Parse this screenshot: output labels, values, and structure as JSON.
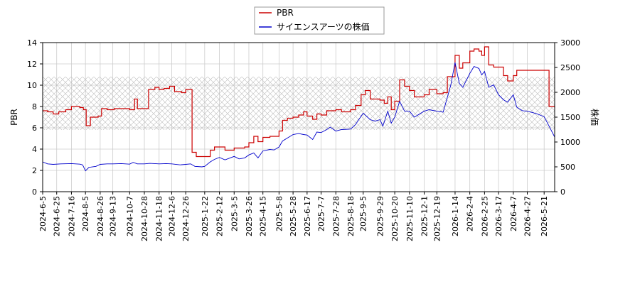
{
  "chart_data": {
    "type": "line",
    "xlabel": "",
    "ylabel_left": "PBR",
    "ylabel_right": "株価",
    "ylim_left": [
      0,
      14
    ],
    "ylim_right": [
      0,
      3000
    ],
    "yticks_left": [
      "0",
      "2",
      "4",
      "6",
      "8",
      "10",
      "12",
      "14"
    ],
    "yticks_right": [
      "0",
      "500",
      "1000",
      "1500",
      "2000",
      "2500",
      "3000"
    ],
    "x_start": "2024-06-05",
    "x_end": "2026-06-05",
    "xticks": [
      "2024-6-5",
      "2024-6-25",
      "2024-7-16",
      "2024-8-5",
      "2024-8-26",
      "2024-9-13",
      "2024-10-7",
      "2024-10-28",
      "2024-11-18",
      "2024-12-6",
      "2024-12-26",
      "2025-1-22",
      "2025-2-12",
      "2025-3-5",
      "2025-3-26",
      "2025-4-15",
      "2025-5-8",
      "2025-5-28",
      "2025-6-17",
      "2025-7-7",
      "2025-7-28",
      "2025-8-18",
      "2025-9-5",
      "2025-9-29",
      "2025-10-20",
      "2025-11-10",
      "2025-12-1",
      "2025-12-19",
      "2026-1-14",
      "2026-2-4",
      "2026-2-25",
      "2026-3-17",
      "2026-4-7",
      "2026-4-27",
      "2026-5-21"
    ],
    "grid": true,
    "legend_position": "top-center",
    "band_left": [
      5.8,
      10.8
    ],
    "series": [
      {
        "name": "PBR",
        "axis": "left",
        "color": "#cc0000",
        "points": [
          [
            "2024-06-05",
            7.6
          ],
          [
            "2024-06-12",
            7.5
          ],
          [
            "2024-06-20",
            7.3
          ],
          [
            "2024-06-28",
            7.5
          ],
          [
            "2024-07-08",
            7.7
          ],
          [
            "2024-07-16",
            8.0
          ],
          [
            "2024-07-28",
            7.9
          ],
          [
            "2024-08-02",
            7.7
          ],
          [
            "2024-08-06",
            6.2
          ],
          [
            "2024-08-12",
            7.0
          ],
          [
            "2024-08-23",
            7.1
          ],
          [
            "2024-08-28",
            7.8
          ],
          [
            "2024-09-05",
            7.7
          ],
          [
            "2024-09-15",
            7.8
          ],
          [
            "2024-09-28",
            7.8
          ],
          [
            "2024-10-07",
            7.7
          ],
          [
            "2024-10-14",
            8.7
          ],
          [
            "2024-10-18",
            7.8
          ],
          [
            "2024-10-28",
            7.8
          ],
          [
            "2024-11-03",
            9.6
          ],
          [
            "2024-11-12",
            9.8
          ],
          [
            "2024-11-18",
            9.6
          ],
          [
            "2024-11-25",
            9.7
          ],
          [
            "2024-12-03",
            9.9
          ],
          [
            "2024-12-10",
            9.4
          ],
          [
            "2024-12-20",
            9.3
          ],
          [
            "2024-12-26",
            9.6
          ],
          [
            "2025-01-02",
            9.6
          ],
          [
            "2025-01-04",
            3.7
          ],
          [
            "2025-01-10",
            3.3
          ],
          [
            "2025-01-22",
            3.3
          ],
          [
            "2025-01-30",
            3.9
          ],
          [
            "2025-02-05",
            4.2
          ],
          [
            "2025-02-20",
            3.9
          ],
          [
            "2025-03-05",
            4.1
          ],
          [
            "2025-03-20",
            4.2
          ],
          [
            "2025-03-26",
            4.6
          ],
          [
            "2025-04-02",
            5.2
          ],
          [
            "2025-04-08",
            4.7
          ],
          [
            "2025-04-15",
            5.1
          ],
          [
            "2025-04-25",
            5.2
          ],
          [
            "2025-05-08",
            5.7
          ],
          [
            "2025-05-13",
            6.7
          ],
          [
            "2025-05-20",
            6.9
          ],
          [
            "2025-05-28",
            7.0
          ],
          [
            "2025-06-05",
            7.2
          ],
          [
            "2025-06-12",
            7.5
          ],
          [
            "2025-06-17",
            7.1
          ],
          [
            "2025-06-25",
            6.8
          ],
          [
            "2025-07-01",
            7.3
          ],
          [
            "2025-07-07",
            7.2
          ],
          [
            "2025-07-15",
            7.6
          ],
          [
            "2025-07-28",
            7.7
          ],
          [
            "2025-08-05",
            7.5
          ],
          [
            "2025-08-18",
            7.7
          ],
          [
            "2025-08-25",
            8.1
          ],
          [
            "2025-09-02",
            9.1
          ],
          [
            "2025-09-08",
            9.5
          ],
          [
            "2025-09-15",
            8.7
          ],
          [
            "2025-09-29",
            8.6
          ],
          [
            "2025-10-05",
            8.3
          ],
          [
            "2025-10-10",
            8.9
          ],
          [
            "2025-10-15",
            7.7
          ],
          [
            "2025-10-20",
            8.5
          ],
          [
            "2025-10-27",
            10.5
          ],
          [
            "2025-11-03",
            9.9
          ],
          [
            "2025-11-10",
            9.5
          ],
          [
            "2025-11-17",
            8.9
          ],
          [
            "2025-12-01",
            9.1
          ],
          [
            "2025-12-08",
            9.6
          ],
          [
            "2025-12-19",
            9.2
          ],
          [
            "2025-12-28",
            9.3
          ],
          [
            "2026-01-03",
            10.8
          ],
          [
            "2026-01-14",
            12.8
          ],
          [
            "2026-01-20",
            11.6
          ],
          [
            "2026-01-25",
            12.1
          ],
          [
            "2026-02-04",
            13.2
          ],
          [
            "2026-02-10",
            13.4
          ],
          [
            "2026-02-17",
            13.2
          ],
          [
            "2026-02-21",
            12.8
          ],
          [
            "2026-02-25",
            13.6
          ],
          [
            "2026-03-03",
            11.9
          ],
          [
            "2026-03-10",
            11.7
          ],
          [
            "2026-03-17",
            11.7
          ],
          [
            "2026-03-24",
            10.9
          ],
          [
            "2026-03-30",
            10.4
          ],
          [
            "2026-04-07",
            10.9
          ],
          [
            "2026-04-12",
            11.4
          ],
          [
            "2026-04-27",
            11.4
          ],
          [
            "2026-05-21",
            11.4
          ],
          [
            "2026-05-28",
            8.0
          ],
          [
            "2026-06-05",
            7.9
          ]
        ]
      },
      {
        "name": "サイエンスアーツの株価",
        "axis": "right",
        "color": "#0000cc",
        "points": [
          [
            "2024-06-05",
            600
          ],
          [
            "2024-06-12",
            560
          ],
          [
            "2024-06-20",
            550
          ],
          [
            "2024-07-01",
            560
          ],
          [
            "2024-07-16",
            565
          ],
          [
            "2024-07-28",
            555
          ],
          [
            "2024-08-01",
            540
          ],
          [
            "2024-08-05",
            420
          ],
          [
            "2024-08-10",
            490
          ],
          [
            "2024-08-20",
            510
          ],
          [
            "2024-08-26",
            550
          ],
          [
            "2024-09-05",
            560
          ],
          [
            "2024-09-13",
            560
          ],
          [
            "2024-09-25",
            565
          ],
          [
            "2024-10-07",
            555
          ],
          [
            "2024-10-12",
            590
          ],
          [
            "2024-10-18",
            560
          ],
          [
            "2024-10-28",
            560
          ],
          [
            "2024-11-05",
            570
          ],
          [
            "2024-11-18",
            560
          ],
          [
            "2024-11-28",
            565
          ],
          [
            "2024-12-06",
            560
          ],
          [
            "2024-12-18",
            540
          ],
          [
            "2024-12-26",
            550
          ],
          [
            "2025-01-02",
            560
          ],
          [
            "2025-01-08",
            510
          ],
          [
            "2025-01-18",
            500
          ],
          [
            "2025-01-22",
            510
          ],
          [
            "2025-01-30",
            600
          ],
          [
            "2025-02-05",
            650
          ],
          [
            "2025-02-12",
            690
          ],
          [
            "2025-02-20",
            640
          ],
          [
            "2025-03-05",
            710
          ],
          [
            "2025-03-12",
            660
          ],
          [
            "2025-03-20",
            680
          ],
          [
            "2025-03-26",
            740
          ],
          [
            "2025-04-02",
            780
          ],
          [
            "2025-04-08",
            680
          ],
          [
            "2025-04-15",
            820
          ],
          [
            "2025-04-25",
            850
          ],
          [
            "2025-05-01",
            840
          ],
          [
            "2025-05-08",
            900
          ],
          [
            "2025-05-13",
            1020
          ],
          [
            "2025-05-20",
            1080
          ],
          [
            "2025-05-28",
            1150
          ],
          [
            "2025-06-05",
            1170
          ],
          [
            "2025-06-12",
            1150
          ],
          [
            "2025-06-17",
            1140
          ],
          [
            "2025-06-25",
            1050
          ],
          [
            "2025-07-01",
            1200
          ],
          [
            "2025-07-07",
            1190
          ],
          [
            "2025-07-15",
            1250
          ],
          [
            "2025-07-20",
            1300
          ],
          [
            "2025-07-28",
            1220
          ],
          [
            "2025-08-05",
            1250
          ],
          [
            "2025-08-18",
            1260
          ],
          [
            "2025-08-25",
            1350
          ],
          [
            "2025-09-02",
            1520
          ],
          [
            "2025-09-05",
            1580
          ],
          [
            "2025-09-15",
            1450
          ],
          [
            "2025-09-22",
            1420
          ],
          [
            "2025-09-29",
            1450
          ],
          [
            "2025-10-03",
            1320
          ],
          [
            "2025-10-10",
            1620
          ],
          [
            "2025-10-15",
            1380
          ],
          [
            "2025-10-20",
            1500
          ],
          [
            "2025-10-27",
            1820
          ],
          [
            "2025-11-03",
            1620
          ],
          [
            "2025-11-10",
            1620
          ],
          [
            "2025-11-17",
            1500
          ],
          [
            "2025-12-01",
            1620
          ],
          [
            "2025-12-08",
            1650
          ],
          [
            "2025-12-19",
            1620
          ],
          [
            "2025-12-28",
            1600
          ],
          [
            "2026-01-03",
            1900
          ],
          [
            "2026-01-08",
            2150
          ],
          [
            "2026-01-14",
            2600
          ],
          [
            "2026-01-20",
            2180
          ],
          [
            "2026-01-25",
            2100
          ],
          [
            "2026-02-04",
            2380
          ],
          [
            "2026-02-10",
            2520
          ],
          [
            "2026-02-17",
            2480
          ],
          [
            "2026-02-21",
            2350
          ],
          [
            "2026-02-25",
            2420
          ],
          [
            "2026-03-03",
            2100
          ],
          [
            "2026-03-10",
            2150
          ],
          [
            "2026-03-17",
            1950
          ],
          [
            "2026-03-24",
            1850
          ],
          [
            "2026-03-30",
            1800
          ],
          [
            "2026-04-07",
            1950
          ],
          [
            "2026-04-12",
            1700
          ],
          [
            "2026-04-20",
            1630
          ],
          [
            "2026-04-27",
            1620
          ],
          [
            "2026-05-10",
            1570
          ],
          [
            "2026-05-21",
            1510
          ],
          [
            "2026-05-28",
            1320
          ],
          [
            "2026-06-05",
            1100
          ]
        ]
      }
    ]
  }
}
